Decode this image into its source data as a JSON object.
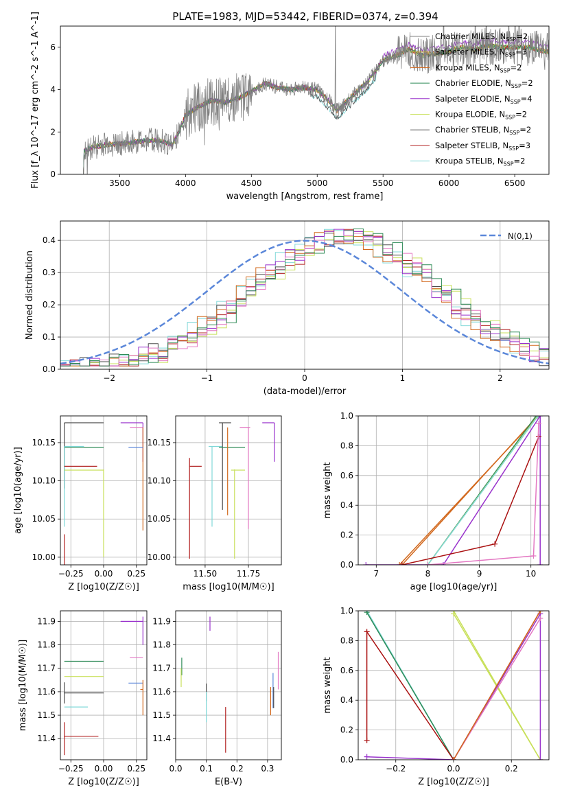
{
  "title": "PLATE=1983, MJD=53442, FIBERID=0374, z=0.394",
  "colors": {
    "Chabrier MILES": "#7f7f7f",
    "Salpeter MILES": "#c9a227",
    "Kroupa MILES": "#d2691e",
    "Chabrier ELODIE": "#2e8b57",
    "Salpeter ELODIE": "#9932cc",
    "Kroupa ELODIE": "#c8e05a",
    "Chabrier STELIB": "#4d4d4d",
    "Salpeter STELIB": "#b22222",
    "Kroupa STELIB": "#80d8d8",
    "Salpeter STELIB heavy": "#aa1111",
    "pink": "#e377c2",
    "gauss": "#5b87d9"
  },
  "legend_spectrum": [
    {
      "model": "Chabrier MILES",
      "label": "Chabrier MILES, N",
      "sub": "SSP",
      "n": "=2"
    },
    {
      "model": "Salpeter MILES",
      "label": "Salpeter MILES, N",
      "sub": "SSP",
      "n": "=3"
    },
    {
      "model": "Kroupa MILES",
      "label": "Kroupa MILES, N",
      "sub": "SSP",
      "n": "=2"
    },
    {
      "model": "Chabrier ELODIE",
      "label": "Chabrier ELODIE, N",
      "sub": "SSP",
      "n": "=2"
    },
    {
      "model": "Salpeter ELODIE",
      "label": "Salpeter ELODIE, N",
      "sub": "SSP",
      "n": "=4"
    },
    {
      "model": "Kroupa ELODIE",
      "label": "Kroupa ELODIE, N",
      "sub": "SSP",
      "n": "=2"
    },
    {
      "model": "Chabrier STELIB",
      "label": "Chabrier STELIB, N",
      "sub": "SSP",
      "n": "=2"
    },
    {
      "model": "Salpeter STELIB",
      "label": "Salpeter STELIB, N",
      "sub": "SSP",
      "n": "=3"
    },
    {
      "model": "Kroupa STELIB",
      "label": "Kroupa STELIB, N",
      "sub": "SSP",
      "n": "=2"
    }
  ],
  "chart_data": [
    {
      "id": "spectrum",
      "type": "line",
      "xlabel": "wavelength [Angstrom, rest frame]",
      "ylabel": "Flux [f_λ 10^-17 erg cm^-2 s^-1 A^-1]",
      "xlim": [
        3050,
        6760
      ],
      "ylim": [
        0,
        7
      ],
      "xticks": [
        3500,
        4000,
        4500,
        5000,
        5500,
        6000,
        6500
      ],
      "yticks": [
        0,
        2,
        4,
        6
      ],
      "continuum": {
        "x": [
          3230,
          3300,
          3400,
          3500,
          3600,
          3700,
          3800,
          3900,
          3950,
          4000,
          4100,
          4200,
          4300,
          4400,
          4500,
          4600,
          4700,
          4800,
          4900,
          5000,
          5100,
          5150,
          5200,
          5300,
          5400,
          5500,
          5600,
          5700,
          5800,
          5900,
          6000,
          6100,
          6200,
          6300,
          6400,
          6500,
          6600,
          6750
        ],
        "y": [
          1.1,
          1.3,
          1.4,
          1.45,
          1.5,
          1.6,
          1.6,
          1.4,
          2.0,
          2.8,
          3.2,
          3.5,
          3.4,
          3.6,
          3.9,
          4.3,
          4.1,
          4.0,
          4.1,
          4.0,
          3.4,
          3.0,
          3.3,
          3.9,
          4.5,
          5.4,
          5.6,
          5.9,
          5.6,
          5.7,
          5.8,
          6.0,
          5.9,
          6.1,
          6.0,
          6.0,
          6.0,
          5.8
        ]
      }
    },
    {
      "id": "residuals",
      "type": "histogram",
      "xlabel": "(data-model)/error",
      "ylabel": "Normed distribution",
      "xlim": [
        -2.5,
        2.5
      ],
      "ylim": [
        0,
        0.46
      ],
      "xticks": [
        -2,
        -1,
        0,
        1,
        2
      ],
      "yticks": [
        0.0,
        0.1,
        0.2,
        0.3,
        0.4
      ],
      "gauss_label": "N(0,1)",
      "gauss": {
        "mu": 0,
        "sigma": 1
      }
    },
    {
      "id": "age_vs_Z",
      "type": "scatter",
      "xlabel": "Z [log10(Z/Z☉)]",
      "ylabel": "age [log10(age/yr)]",
      "xlim": [
        -0.33,
        0.33
      ],
      "ylim": [
        9.99,
        10.185
      ],
      "xticks": [
        -0.25,
        0.0,
        0.25
      ],
      "yticks": [
        10.0,
        10.05,
        10.1,
        10.15
      ],
      "segments": [
        {
          "c": "Chabrier STELIB",
          "x": [
            -0.3,
            0.0
          ],
          "y": [
            10.176,
            10.176
          ]
        },
        {
          "c": "Chabrier STELIB",
          "x": [
            -0.3,
            -0.3
          ],
          "y": [
            10.09,
            10.176
          ]
        },
        {
          "c": "Chabrier ELODIE",
          "x": [
            -0.3,
            0.0
          ],
          "y": [
            10.144,
            10.144
          ]
        },
        {
          "c": "Kroupa STELIB",
          "x": [
            -0.3,
            -0.15
          ],
          "y": [
            10.145,
            10.145
          ]
        },
        {
          "c": "Kroupa STELIB",
          "x": [
            -0.3,
            -0.3
          ],
          "y": [
            10.04,
            10.145
          ]
        },
        {
          "c": "Salpeter STELIB",
          "x": [
            -0.3,
            -0.05
          ],
          "y": [
            10.119,
            10.119
          ]
        },
        {
          "c": "Salpeter STELIB",
          "x": [
            -0.3,
            -0.3
          ],
          "y": [
            9.99,
            10.03
          ]
        },
        {
          "c": "Kroupa ELODIE",
          "x": [
            -0.3,
            0.0
          ],
          "y": [
            10.114,
            10.114
          ]
        },
        {
          "c": "Kroupa ELODIE",
          "x": [
            0.0,
            0.0
          ],
          "y": [
            10.0,
            10.115
          ]
        },
        {
          "c": "Salpeter ELODIE",
          "x": [
            0.13,
            0.3
          ],
          "y": [
            10.176,
            10.176
          ]
        },
        {
          "c": "Salpeter ELODIE",
          "x": [
            0.3,
            0.3
          ],
          "y": [
            10.125,
            10.176
          ]
        },
        {
          "c": "pink",
          "x": [
            0.2,
            0.3
          ],
          "y": [
            10.17,
            10.17
          ]
        },
        {
          "c": "Kroupa MILES",
          "x": [
            0.3,
            0.3
          ],
          "y": [
            10.035,
            10.17
          ]
        },
        {
          "c": "gauss",
          "x": [
            0.19,
            0.3
          ],
          "y": [
            10.144,
            10.144
          ]
        }
      ]
    },
    {
      "id": "age_vs_mass",
      "type": "scatter",
      "xlabel": "mass [log10(M/M☉)]",
      "ylabel": "",
      "xlim": [
        11.33,
        11.94
      ],
      "ylim": [
        9.99,
        10.185
      ],
      "xticks": [
        11.5,
        11.75
      ],
      "yticks": [
        10.0,
        10.05,
        10.1,
        10.15
      ],
      "segments": [
        {
          "c": "Salpeter STELIB",
          "x": [
            11.41,
            11.48
          ],
          "y": [
            10.119,
            10.119
          ]
        },
        {
          "c": "Salpeter STELIB",
          "x": [
            11.41,
            11.41
          ],
          "y": [
            9.998,
            10.13
          ]
        },
        {
          "c": "Kroupa STELIB",
          "x": [
            11.52,
            11.6
          ],
          "y": [
            10.145,
            10.145
          ]
        },
        {
          "c": "Kroupa STELIB",
          "x": [
            11.54,
            11.54
          ],
          "y": [
            10.04,
            10.145
          ]
        },
        {
          "c": "Chabrier STELIB",
          "x": [
            11.58,
            11.65
          ],
          "y": [
            10.176,
            10.176
          ]
        },
        {
          "c": "Chabrier STELIB",
          "x": [
            11.6,
            11.6
          ],
          "y": [
            10.062,
            10.176
          ]
        },
        {
          "c": "Chabrier ELODIE",
          "x": [
            11.58,
            11.73
          ],
          "y": [
            10.144,
            10.144
          ]
        },
        {
          "c": "Kroupa MILES",
          "x": [
            11.63,
            11.63
          ],
          "y": [
            10.055,
            10.17
          ]
        },
        {
          "c": "Kroupa ELODIE",
          "x": [
            11.65,
            11.73
          ],
          "y": [
            10.114,
            10.114
          ]
        },
        {
          "c": "Kroupa ELODIE",
          "x": [
            11.67,
            11.67
          ],
          "y": [
            9.998,
            10.115
          ]
        },
        {
          "c": "pink",
          "x": [
            11.7,
            11.76
          ],
          "y": [
            10.17,
            10.17
          ]
        },
        {
          "c": "pink",
          "x": [
            11.75,
            11.75
          ],
          "y": [
            10.037,
            10.17
          ]
        },
        {
          "c": "Salpeter ELODIE",
          "x": [
            11.83,
            11.9
          ],
          "y": [
            10.176,
            10.176
          ]
        },
        {
          "c": "Salpeter ELODIE",
          "x": [
            11.9,
            11.9
          ],
          "y": [
            10.125,
            10.176
          ]
        }
      ]
    },
    {
      "id": "massweight_vs_age",
      "type": "line",
      "xlabel": "age [log10(age/yr)]",
      "ylabel": "mass weight",
      "xlim": [
        6.65,
        10.35
      ],
      "ylim": [
        0,
        1
      ],
      "xticks": [
        7,
        8,
        9,
        10
      ],
      "yticks": [
        0.0,
        0.2,
        0.4,
        0.6,
        0.8,
        1.0
      ],
      "series": [
        {
          "c": "Kroupa MILES",
          "x": [
            7.5,
            10.13
          ],
          "y": [
            0,
            1.0
          ]
        },
        {
          "c": "Kroupa MILES",
          "x": [
            7.45,
            10.15
          ],
          "y": [
            0,
            1.0
          ]
        },
        {
          "c": "Chabrier ELODIE",
          "x": [
            8.0,
            10.1
          ],
          "y": [
            0,
            1.0
          ]
        },
        {
          "c": "Kroupa ELODIE",
          "x": [
            8.0,
            10.13
          ],
          "y": [
            0,
            1.0
          ]
        },
        {
          "c": "Kroupa STELIB",
          "x": [
            8.0,
            10.14
          ],
          "y": [
            0,
            1.0
          ]
        },
        {
          "c": "Salpeter ELODIE",
          "x": [
            6.8,
            8.3,
            10.18,
            10.18
          ],
          "y": [
            0,
            0,
            1.0,
            0
          ]
        },
        {
          "c": "Salpeter STELIB heavy",
          "x": [
            7.5,
            9.3,
            10.15
          ],
          "y": [
            0,
            0.14,
            0.86
          ]
        },
        {
          "c": "pink",
          "x": [
            8.0,
            10.05,
            10.15
          ],
          "y": [
            0,
            0.06,
            0.95
          ]
        }
      ]
    },
    {
      "id": "mass_vs_Z",
      "type": "scatter",
      "xlabel": "Z [log10(Z/Z☉)]",
      "ylabel": "mass [log10(M/M☉)]",
      "xlim": [
        -0.33,
        0.33
      ],
      "ylim": [
        11.31,
        11.945
      ],
      "xticks": [
        -0.25,
        0.0,
        0.25
      ],
      "yticks": [
        11.4,
        11.5,
        11.6,
        11.7,
        11.8,
        11.9
      ],
      "segments": [
        {
          "c": "Chabrier ELODIE",
          "x": [
            -0.3,
            0.0
          ],
          "y": [
            11.73,
            11.73
          ]
        },
        {
          "c": "Kroupa ELODIE",
          "x": [
            -0.3,
            0.0
          ],
          "y": [
            11.665,
            11.665
          ]
        },
        {
          "c": "Chabrier STELIB",
          "x": [
            -0.3,
            0.0
          ],
          "y": [
            11.595,
            11.595
          ]
        },
        {
          "c": "Chabrier STELIB",
          "x": [
            -0.3,
            -0.3
          ],
          "y": [
            11.55,
            11.64
          ]
        },
        {
          "c": "Kroupa STELIB",
          "x": [
            -0.3,
            -0.12
          ],
          "y": [
            11.535,
            11.535
          ]
        },
        {
          "c": "Salpeter STELIB",
          "x": [
            -0.3,
            -0.04
          ],
          "y": [
            11.41,
            11.41
          ]
        },
        {
          "c": "Salpeter STELIB",
          "x": [
            -0.3,
            -0.3
          ],
          "y": [
            11.33,
            11.47
          ]
        },
        {
          "c": "Salpeter ELODIE",
          "x": [
            0.13,
            0.3
          ],
          "y": [
            11.9,
            11.9
          ]
        },
        {
          "c": "Salpeter ELODIE",
          "x": [
            0.3,
            0.3
          ],
          "y": [
            11.8,
            11.92
          ]
        },
        {
          "c": "pink",
          "x": [
            0.2,
            0.3
          ],
          "y": [
            11.745,
            11.745
          ]
        },
        {
          "c": "gauss",
          "x": [
            0.19,
            0.3
          ],
          "y": [
            11.637,
            11.637
          ]
        },
        {
          "c": "Kroupa MILES",
          "x": [
            0.28,
            0.3
          ],
          "y": [
            11.61,
            11.61
          ]
        },
        {
          "c": "Kroupa MILES",
          "x": [
            0.3,
            0.3
          ],
          "y": [
            11.5,
            11.65
          ]
        }
      ]
    },
    {
      "id": "mass_vs_EBV",
      "type": "scatter",
      "xlabel": "E(B-V)",
      "ylabel": "",
      "xlim": [
        0.0,
        0.345
      ],
      "ylim": [
        11.31,
        11.945
      ],
      "xticks": [
        0.0,
        0.1,
        0.2,
        0.3
      ],
      "yticks": [
        11.4,
        11.5,
        11.6,
        11.7,
        11.8,
        11.9
      ],
      "segments": [
        {
          "c": "Chabrier ELODIE",
          "x": [
            0.02,
            0.02
          ],
          "y": [
            11.67,
            11.745
          ]
        },
        {
          "c": "Kroupa ELODIE",
          "x": [
            0.018,
            0.018
          ],
          "y": [
            11.62,
            11.7
          ]
        },
        {
          "c": "Chabrier STELIB",
          "x": [
            0.1,
            0.1
          ],
          "y": [
            11.56,
            11.635
          ]
        },
        {
          "c": "Kroupa STELIB",
          "x": [
            0.1,
            0.1
          ],
          "y": [
            11.47,
            11.6
          ]
        },
        {
          "c": "Salpeter ELODIE",
          "x": [
            0.112,
            0.112
          ],
          "y": [
            11.86,
            11.92
          ]
        },
        {
          "c": "Salpeter STELIB",
          "x": [
            0.163,
            0.163
          ],
          "y": [
            11.34,
            11.535
          ]
        },
        {
          "c": "Kroupa MILES",
          "x": [
            0.31,
            0.31
          ],
          "y": [
            11.5,
            11.62
          ]
        },
        {
          "c": "gauss",
          "x": [
            0.318,
            0.318
          ],
          "y": [
            11.53,
            11.68
          ]
        },
        {
          "c": "Chabrier STELIB",
          "x": [
            0.32,
            0.32
          ],
          "y": [
            11.53,
            11.62
          ]
        },
        {
          "c": "pink",
          "x": [
            0.335,
            0.335
          ],
          "y": [
            11.61,
            11.77
          ]
        }
      ]
    },
    {
      "id": "massweight_vs_Z",
      "type": "line",
      "xlabel": "Z [log10(Z/Z☉)]",
      "ylabel": "mass weight",
      "xlim": [
        -0.33,
        0.33
      ],
      "ylim": [
        0,
        1
      ],
      "xticks": [
        -0.2,
        0.0,
        0.2
      ],
      "yticks": [
        0.0,
        0.2,
        0.4,
        0.6,
        0.8,
        1.0
      ],
      "series": [
        {
          "c": "Kroupa STELIB",
          "x": [
            -0.3,
            0.0
          ],
          "y": [
            1.0,
            0.0
          ]
        },
        {
          "c": "Chabrier ELODIE",
          "x": [
            -0.3,
            0.0
          ],
          "y": [
            0.99,
            0.0
          ]
        },
        {
          "c": "Kroupa ELODIE",
          "x": [
            0.0,
            0.3
          ],
          "y": [
            1.0,
            0.0
          ]
        },
        {
          "c": "Kroupa ELODIE",
          "x": [
            0.0,
            0.3
          ],
          "y": [
            0.98,
            0.0
          ]
        },
        {
          "c": "Salpeter STELIB heavy",
          "x": [
            -0.3,
            -0.3,
            0.0,
            0.3
          ],
          "y": [
            0.13,
            0.86,
            0.0,
            1.0
          ]
        },
        {
          "c": "Salpeter ELODIE",
          "x": [
            -0.3,
            0.0,
            0.3,
            0.3
          ],
          "y": [
            0.02,
            0.0,
            0.98,
            0.0
          ]
        },
        {
          "c": "pink",
          "x": [
            0.0,
            0.3
          ],
          "y": [
            0.0,
            0.95
          ]
        },
        {
          "c": "Kroupa MILES",
          "x": [
            0.0,
            0.3
          ],
          "y": [
            0.0,
            1.0
          ]
        }
      ]
    }
  ]
}
